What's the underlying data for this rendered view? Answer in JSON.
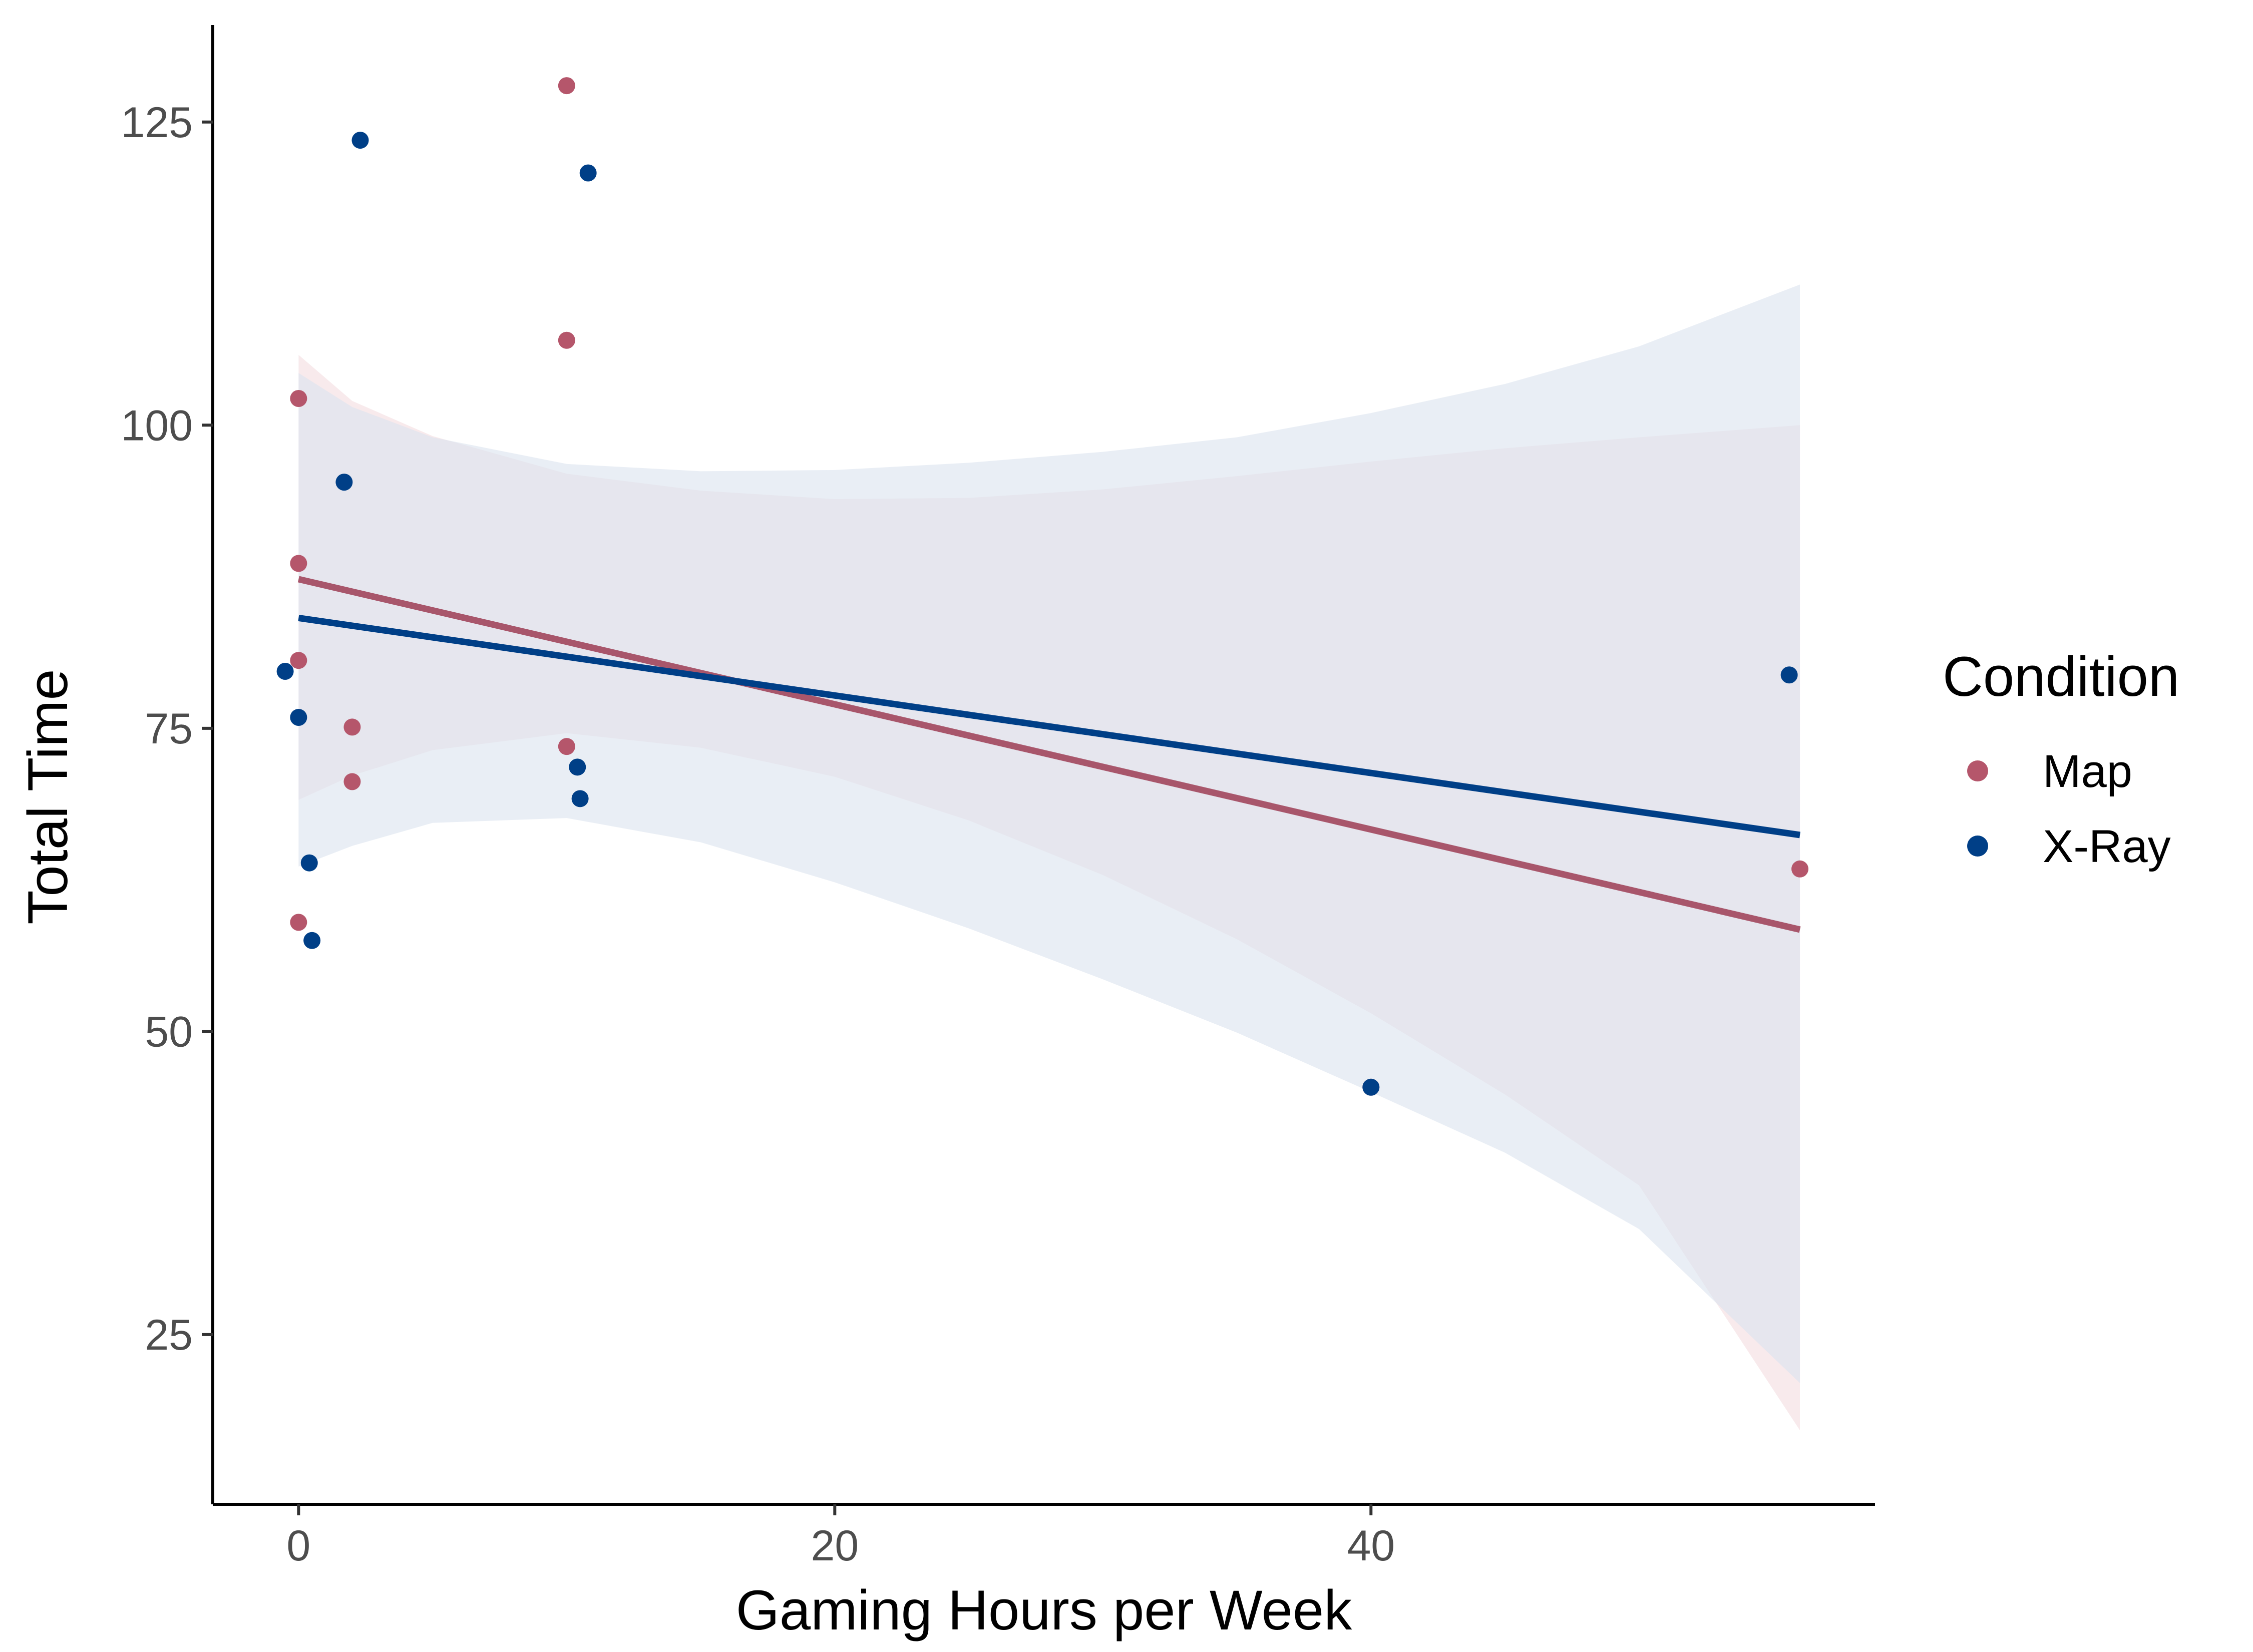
{
  "chart_data": {
    "type": "scatter",
    "xlabel": "Gaming Hours per Week",
    "ylabel": "Total Time",
    "xlim": [
      -3.2,
      58.8
    ],
    "ylim": [
      11,
      133
    ],
    "x_ticks": [
      0,
      20,
      40
    ],
    "y_ticks": [
      25,
      50,
      75,
      100,
      125
    ],
    "grid": false,
    "legend": {
      "title": "Condition",
      "position": "right"
    },
    "series": [
      {
        "name": "Map",
        "color": "#B5566B",
        "line_color": "#A8566B",
        "band_color": "#F3DDE1",
        "points": [
          [
            0,
            102.2
          ],
          [
            0,
            88.6
          ],
          [
            0,
            80.6
          ],
          [
            0,
            59.0
          ],
          [
            2,
            75.1
          ],
          [
            2,
            70.6
          ],
          [
            10,
            128.0
          ],
          [
            10,
            107.0
          ],
          [
            10,
            73.5
          ],
          [
            40,
            45.4
          ],
          [
            56,
            63.4
          ]
        ],
        "fit": {
          "x0": 0,
          "y0": 87.3,
          "x1": 56,
          "y1": 58.4
        },
        "ci_band": [
          [
            0,
            69.1,
            105.8
          ],
          [
            2,
            71.1,
            102.0
          ],
          [
            5,
            73.2,
            99.1
          ],
          [
            10,
            74.6,
            96.0
          ],
          [
            15,
            73.4,
            94.6
          ],
          [
            20,
            71.0,
            93.9
          ],
          [
            25,
            67.4,
            94.0
          ],
          [
            30,
            62.9,
            94.7
          ],
          [
            35,
            57.6,
            95.8
          ],
          [
            40,
            51.5,
            97.0
          ],
          [
            45,
            44.8,
            98.1
          ],
          [
            50,
            37.3,
            99.0
          ],
          [
            56,
            17.1,
            100.0
          ]
        ]
      },
      {
        "name": "X-Ray",
        "color": "#003F87",
        "line_color": "#003F87",
        "band_color": "#DCE3EF",
        "points": [
          [
            -0.5,
            79.7
          ],
          [
            0,
            75.9
          ],
          [
            0.4,
            63.9
          ],
          [
            0.5,
            57.5
          ],
          [
            1.7,
            95.3
          ],
          [
            2.3,
            123.5
          ],
          [
            10.4,
            71.8
          ],
          [
            10.5,
            69.2
          ],
          [
            10.8,
            120.8
          ],
          [
            40,
            45.4
          ],
          [
            55.6,
            79.4
          ]
        ],
        "fit": {
          "x0": 0,
          "y0": 84.1,
          "x1": 56,
          "y1": 66.2
        },
        "ci_band": [
          [
            0,
            63.6,
            104.3
          ],
          [
            2,
            65.3,
            101.5
          ],
          [
            5,
            67.2,
            99.0
          ],
          [
            10,
            67.6,
            96.8
          ],
          [
            15,
            65.6,
            96.2
          ],
          [
            20,
            62.3,
            96.3
          ],
          [
            25,
            58.5,
            96.9
          ],
          [
            30,
            54.3,
            97.8
          ],
          [
            35,
            49.9,
            99.0
          ],
          [
            40,
            45.0,
            101.0
          ],
          [
            45,
            40.0,
            103.4
          ],
          [
            50,
            33.7,
            106.5
          ],
          [
            56,
            21.0,
            111.6
          ]
        ]
      }
    ]
  }
}
